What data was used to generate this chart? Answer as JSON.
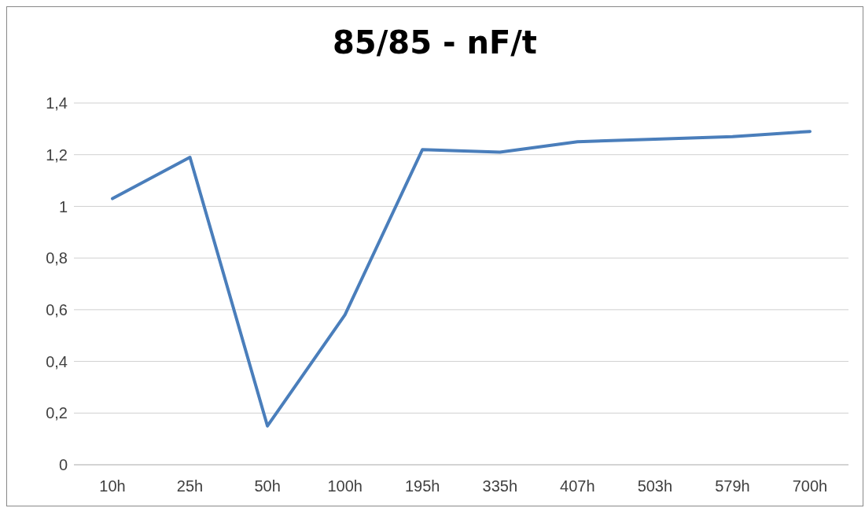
{
  "chart_data": {
    "type": "line",
    "title": "85/85 - nF/t",
    "categories": [
      "10h",
      "25h",
      "50h",
      "100h",
      "195h",
      "335h",
      "407h",
      "503h",
      "579h",
      "700h"
    ],
    "series": [
      {
        "color": "#4a7ebb",
        "values": [
          1.03,
          1.19,
          0.15,
          0.58,
          1.22,
          1.21,
          1.25,
          1.26,
          1.27,
          1.29
        ]
      }
    ],
    "ylim": [
      0,
      1.4
    ],
    "yticks": [
      0,
      {
        "value": 0.2,
        "label": "0,2"
      },
      {
        "value": 0.4,
        "label": "0,4"
      },
      {
        "value": 0.6,
        "label": "0,6"
      },
      {
        "value": 0.8,
        "label": "0,8"
      },
      1,
      {
        "value": 1.2,
        "label": "1,2"
      },
      {
        "value": 1.4,
        "label": "1,4"
      }
    ],
    "grid": "y",
    "legend": false,
    "marker": "none",
    "line_style": "solid"
  }
}
